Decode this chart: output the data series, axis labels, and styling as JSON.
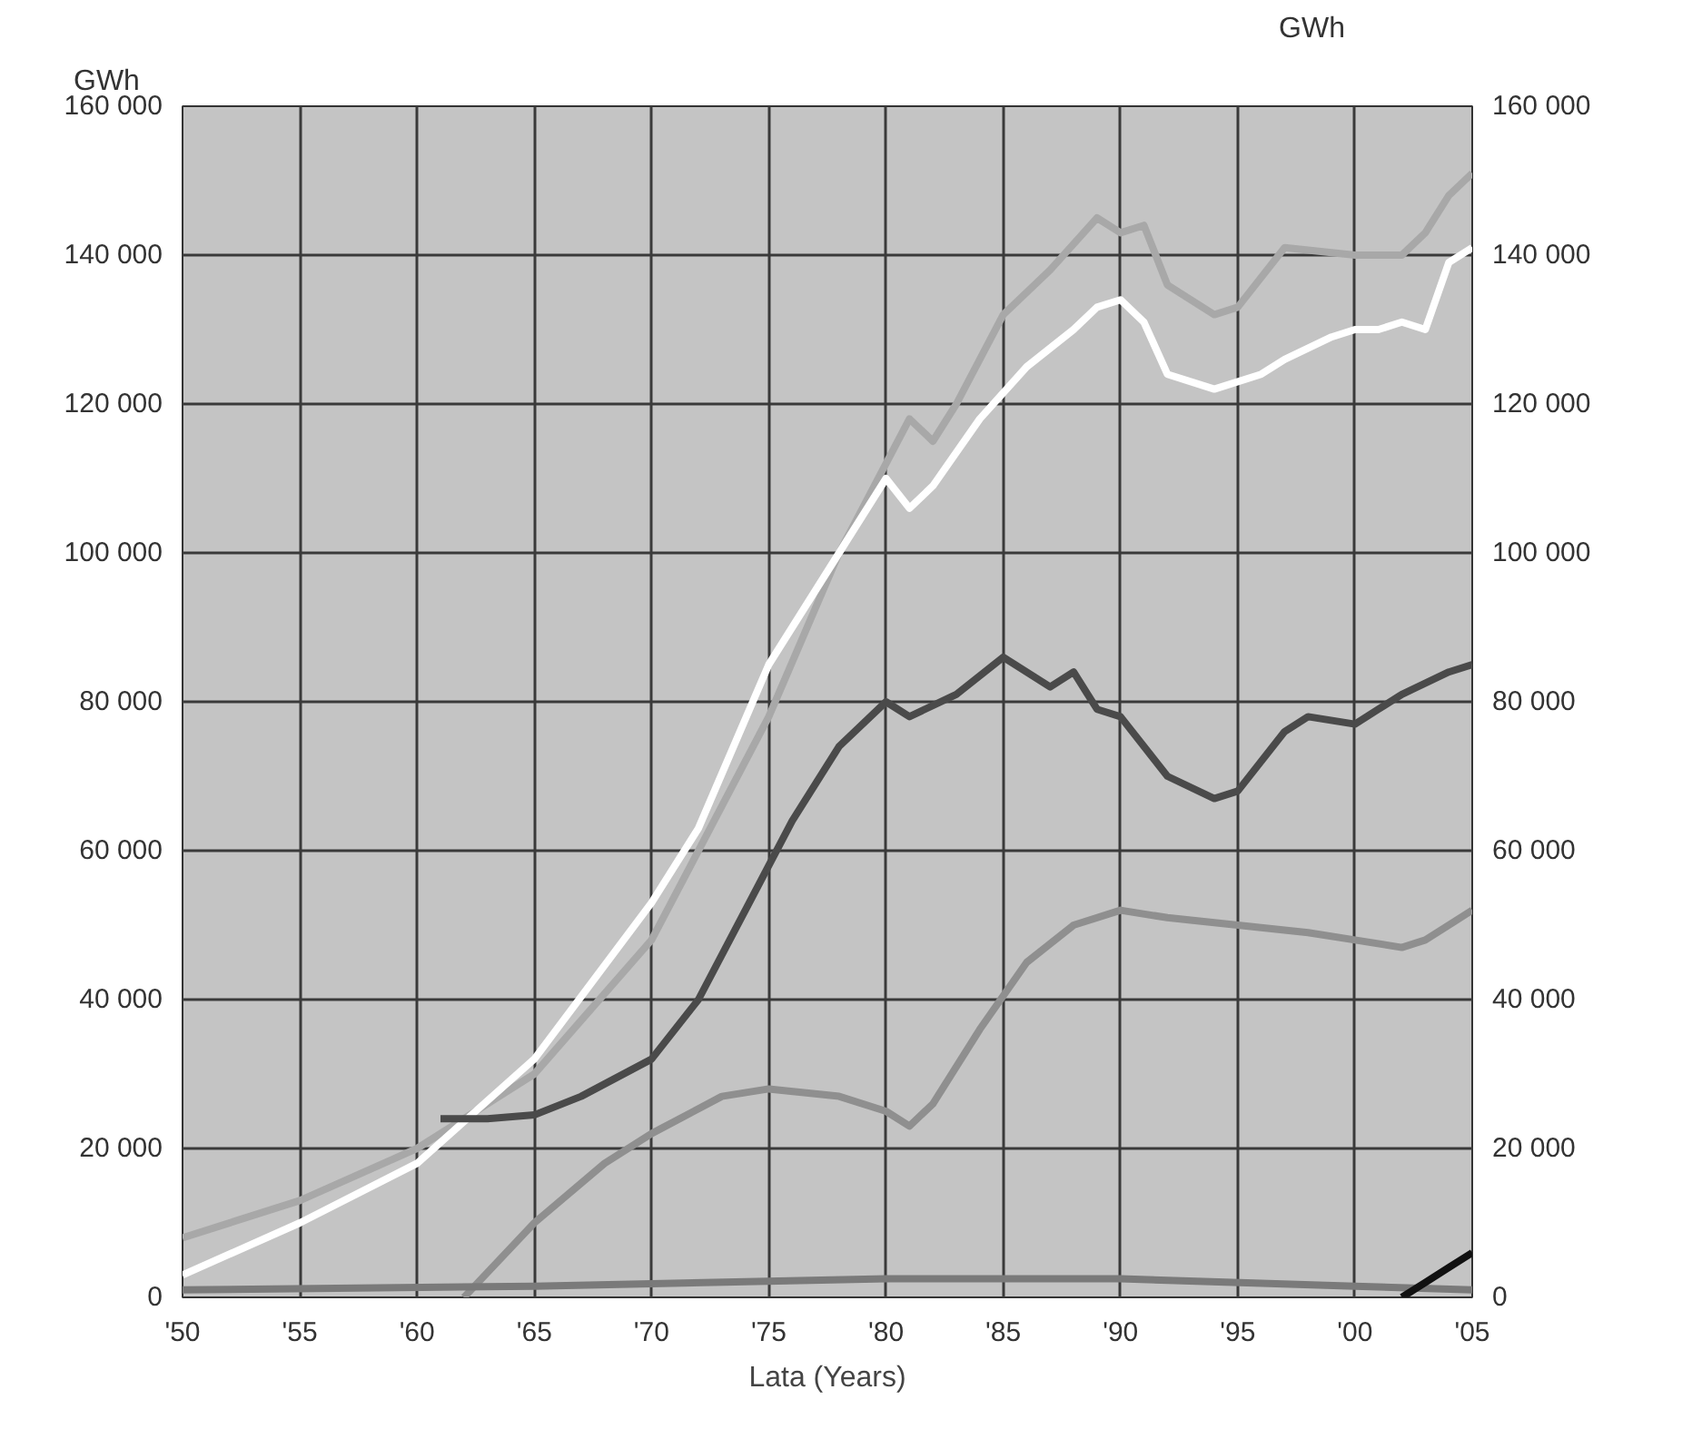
{
  "chart_data": {
    "type": "line",
    "xlabel": "Lata (Years)",
    "ylabel": "GWh",
    "y2label": "GWh",
    "xlim": [
      1950,
      2005
    ],
    "xticks": [
      {
        "value": 1950,
        "label": "'50"
      },
      {
        "value": 1955,
        "label": "'55"
      },
      {
        "value": 1960,
        "label": "'60"
      },
      {
        "value": 1965,
        "label": "'65"
      },
      {
        "value": 1970,
        "label": "'70"
      },
      {
        "value": 1975,
        "label": "'75"
      },
      {
        "value": 1980,
        "label": "'80"
      },
      {
        "value": 1985,
        "label": "'85"
      },
      {
        "value": 1990,
        "label": "'90"
      },
      {
        "value": 1995,
        "label": "'95"
      },
      {
        "value": 2000,
        "label": "'00"
      },
      {
        "value": 2005,
        "label": "'05"
      }
    ],
    "ylim": [
      0,
      160000
    ],
    "yticks": [
      0,
      {
        "value": 20000,
        "label": "20 000"
      },
      {
        "value": 40000,
        "label": "40 000"
      },
      {
        "value": 60000,
        "label": "60 000"
      },
      {
        "value": 80000,
        "label": "80 000"
      },
      {
        "value": 100000,
        "label": "100 000"
      },
      {
        "value": 120000,
        "label": "120 000"
      },
      {
        "value": 140000,
        "label": "140 000"
      },
      {
        "value": 160000,
        "label": "160 000"
      }
    ],
    "y2lim": [
      0,
      160000
    ],
    "y2ticks": [
      0,
      {
        "value": 20000,
        "label": "20 000"
      },
      {
        "value": 40000,
        "label": "40 000"
      },
      {
        "value": 60000,
        "label": "60 000"
      },
      {
        "value": 80000,
        "label": "80 000"
      },
      {
        "value": 100000,
        "label": "100 000"
      },
      {
        "value": 120000,
        "label": "120 000"
      },
      {
        "value": 140000,
        "label": "140 000"
      },
      {
        "value": 160000,
        "label": "160 000"
      }
    ],
    "grid": true,
    "line_style": "solid",
    "series": [
      {
        "color": "#a8a8a8",
        "x": [
          1950,
          1955,
          1960,
          1965,
          1970,
          1975,
          1978,
          1980,
          1981,
          1982,
          1983,
          1985,
          1987,
          1989,
          1990,
          1991,
          1992,
          1994,
          1995,
          1997,
          2000,
          2002,
          2003,
          2004,
          2005
        ],
        "values": [
          8000,
          13000,
          20000,
          30000,
          48000,
          78000,
          100000,
          112000,
          118000,
          115000,
          120000,
          132000,
          138000,
          145000,
          143000,
          144000,
          136000,
          132000,
          133000,
          141000,
          140000,
          140000,
          143000,
          148000,
          151000
        ]
      },
      {
        "color": "#ffffff",
        "x": [
          1950,
          1955,
          1960,
          1965,
          1970,
          1972,
          1975,
          1978,
          1980,
          1981,
          1982,
          1984,
          1986,
          1988,
          1989,
          1990,
          1991,
          1992,
          1994,
          1996,
          1997,
          1999,
          2000,
          2001,
          2002,
          2003,
          2004,
          2005
        ],
        "values": [
          3000,
          10000,
          18000,
          32000,
          53000,
          63000,
          85000,
          100000,
          110000,
          106000,
          109000,
          118000,
          125000,
          130000,
          133000,
          134000,
          131000,
          124000,
          122000,
          124000,
          126000,
          129000,
          130000,
          130000,
          131000,
          130000,
          139000,
          141000
        ]
      },
      {
        "color": "#4a4a4a",
        "x": [
          1961,
          1963,
          1965,
          1967,
          1970,
          1972,
          1974,
          1976,
          1978,
          1980,
          1981,
          1983,
          1985,
          1987,
          1988,
          1989,
          1990,
          1992,
          1994,
          1995,
          1997,
          1998,
          2000,
          2001,
          2002,
          2004,
          2005
        ],
        "values": [
          24000,
          24000,
          24500,
          27000,
          32000,
          40000,
          52000,
          64000,
          74000,
          80000,
          78000,
          81000,
          86000,
          82000,
          84000,
          79000,
          78000,
          70000,
          67000,
          68000,
          76000,
          78000,
          77000,
          79000,
          81000,
          84000,
          85000
        ]
      },
      {
        "color": "#8f8f8f",
        "x": [
          1962,
          1965,
          1968,
          1970,
          1973,
          1975,
          1978,
          1980,
          1981,
          1982,
          1984,
          1986,
          1988,
          1990,
          1992,
          1995,
          1998,
          2000,
          2002,
          2003,
          2005
        ],
        "values": [
          0,
          10000,
          18000,
          22000,
          27000,
          28000,
          27000,
          25000,
          23000,
          26000,
          36000,
          45000,
          50000,
          52000,
          51000,
          50000,
          49000,
          48000,
          47000,
          48000,
          52000
        ]
      },
      {
        "color": "#7a7a7a",
        "x": [
          1950,
          1965,
          1980,
          1990,
          2000,
          2005
        ],
        "values": [
          1000,
          1500,
          2500,
          2500,
          1500,
          1000
        ]
      },
      {
        "color": "#111111",
        "x": [
          2002,
          2003,
          2004,
          2005
        ],
        "values": [
          0,
          2000,
          4000,
          6000
        ]
      }
    ]
  }
}
